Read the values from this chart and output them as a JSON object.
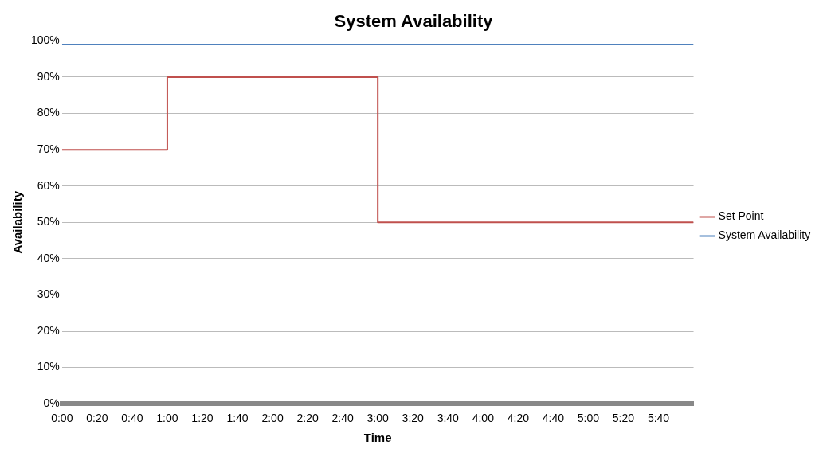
{
  "chart_data": {
    "type": "step",
    "title": "System Availability",
    "xlabel": "Time",
    "ylabel": "Availability",
    "series": [
      {
        "name": "Set Point",
        "color": "#c0504d",
        "x": [
          0,
          1,
          3,
          6
        ],
        "values": [
          70,
          90,
          50,
          50
        ]
      },
      {
        "name": "System Availability",
        "color": "#4f81bd",
        "x": [
          0,
          6
        ],
        "values": [
          99,
          99
        ]
      }
    ],
    "xlim": [
      0,
      6
    ],
    "xticks": [
      {
        "value": 0,
        "label": "0:00"
      },
      {
        "value": 0.3333,
        "label": "0:20"
      },
      {
        "value": 0.6667,
        "label": "0:40"
      },
      {
        "value": 1,
        "label": "1:00"
      },
      {
        "value": 1.3333,
        "label": "1:20"
      },
      {
        "value": 1.6667,
        "label": "1:40"
      },
      {
        "value": 2,
        "label": "2:00"
      },
      {
        "value": 2.3333,
        "label": "2:20"
      },
      {
        "value": 2.6667,
        "label": "2:40"
      },
      {
        "value": 3,
        "label": "3:00"
      },
      {
        "value": 3.3333,
        "label": "3:20"
      },
      {
        "value": 3.6667,
        "label": "3:40"
      },
      {
        "value": 4,
        "label": "4:00"
      },
      {
        "value": 4.3333,
        "label": "4:20"
      },
      {
        "value": 4.6667,
        "label": "4:40"
      },
      {
        "value": 5,
        "label": "5:00"
      },
      {
        "value": 5.3333,
        "label": "5:20"
      },
      {
        "value": 5.6667,
        "label": "5:40"
      }
    ],
    "ylim": [
      0,
      100
    ],
    "yticks": [
      {
        "value": 0,
        "label": "0%"
      },
      {
        "value": 10,
        "label": "10%"
      },
      {
        "value": 20,
        "label": "20%"
      },
      {
        "value": 30,
        "label": "30%"
      },
      {
        "value": 40,
        "label": "40%"
      },
      {
        "value": 50,
        "label": "50%"
      },
      {
        "value": 60,
        "label": "60%"
      },
      {
        "value": 70,
        "label": "70%"
      },
      {
        "value": 80,
        "label": "80%"
      },
      {
        "value": 90,
        "label": "90%"
      },
      {
        "value": 100,
        "label": "100%"
      }
    ],
    "grid": "y",
    "legend": "right",
    "marker": "none",
    "line_style": "solid"
  }
}
